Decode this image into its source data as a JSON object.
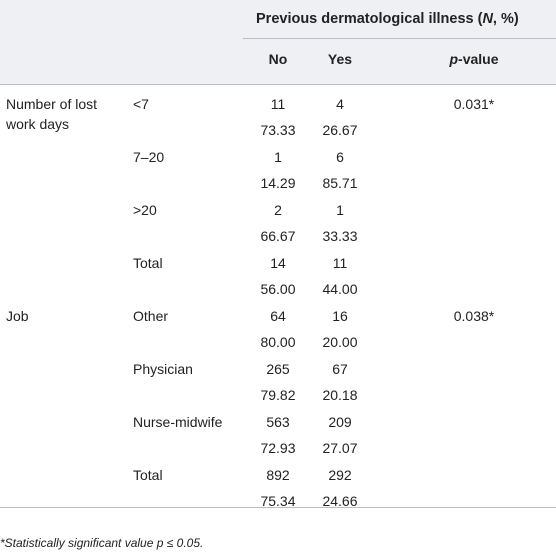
{
  "header": {
    "group_title_main": "Previous dermatological illness (",
    "group_title_n": "N",
    "group_title_tail": ", %)",
    "col_no": "No",
    "col_yes": "Yes",
    "col_p_prefix": "p",
    "col_p_suffix": "-value"
  },
  "rows": [
    {
      "variable": "Number of lost",
      "variable2": "work days",
      "category": "<7",
      "no_n": "11",
      "yes_n": "4",
      "no_pct": "73.33",
      "yes_pct": "26.67",
      "p": "0.031*"
    },
    {
      "variable": "",
      "variable2": "",
      "category": "7–20",
      "no_n": "1",
      "yes_n": "6",
      "no_pct": "14.29",
      "yes_pct": "85.71",
      "p": ""
    },
    {
      "variable": "",
      "variable2": "",
      "category": ">20",
      "no_n": "2",
      "yes_n": "1",
      "no_pct": "66.67",
      "yes_pct": "33.33",
      "p": ""
    },
    {
      "variable": "",
      "variable2": "",
      "category": "Total",
      "no_n": "14",
      "yes_n": "11",
      "no_pct": "56.00",
      "yes_pct": "44.00",
      "p": ""
    },
    {
      "variable": "Job",
      "variable2": "",
      "category": "Other",
      "no_n": "64",
      "yes_n": "16",
      "no_pct": "80.00",
      "yes_pct": "20.00",
      "p": "0.038*"
    },
    {
      "variable": "",
      "variable2": "",
      "category": "Physician",
      "no_n": "265",
      "yes_n": "67",
      "no_pct": "79.82",
      "yes_pct": "20.18",
      "p": ""
    },
    {
      "variable": "",
      "variable2": "",
      "category": "Nurse-midwife",
      "no_n": "563",
      "yes_n": "209",
      "no_pct": "72.93",
      "yes_pct": "27.07",
      "p": ""
    },
    {
      "variable": "",
      "variable2": "",
      "category": "Total",
      "no_n": "892",
      "yes_n": "292",
      "no_pct": "75.34",
      "yes_pct": "24.66",
      "p": ""
    }
  ],
  "footnote": "*Statistically significant value p ≤ 0.05."
}
